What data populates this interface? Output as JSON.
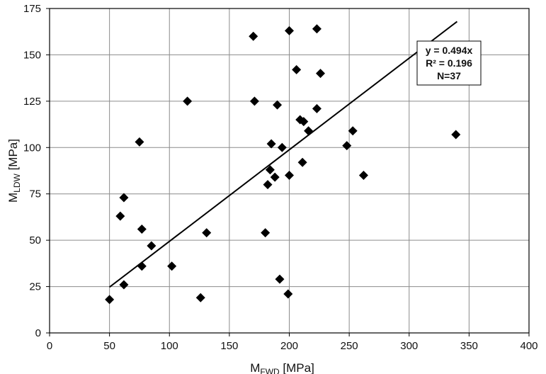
{
  "chart_data": {
    "type": "scatter",
    "title": "",
    "xlabel": {
      "main": "M",
      "sub": "FWD",
      "unit": " [MPa]"
    },
    "ylabel": {
      "main": "M",
      "sub": "LDW",
      "unit": " [MPa]"
    },
    "xlim": [
      0,
      400
    ],
    "ylim": [
      0,
      175
    ],
    "xticks": [
      0,
      50,
      100,
      150,
      200,
      250,
      300,
      350,
      400
    ],
    "yticks": [
      0,
      25,
      50,
      75,
      100,
      125,
      150,
      175
    ],
    "grid": true,
    "legend": "none",
    "colors": {
      "marker": "#000000",
      "grid": "#8c8c8c",
      "line": "#000000"
    },
    "points": [
      [
        50,
        18
      ],
      [
        59,
        63
      ],
      [
        62,
        73
      ],
      [
        62,
        26
      ],
      [
        75,
        103
      ],
      [
        77,
        56
      ],
      [
        77,
        36
      ],
      [
        85,
        47
      ],
      [
        102,
        36
      ],
      [
        115,
        125
      ],
      [
        126,
        19
      ],
      [
        131,
        54
      ],
      [
        170,
        160
      ],
      [
        171,
        125
      ],
      [
        180,
        54
      ],
      [
        182,
        80
      ],
      [
        184,
        88
      ],
      [
        185,
        102
      ],
      [
        188,
        84
      ],
      [
        190,
        123
      ],
      [
        192,
        29
      ],
      [
        194,
        100
      ],
      [
        199,
        21
      ],
      [
        200,
        85
      ],
      [
        200,
        163
      ],
      [
        206,
        142
      ],
      [
        209,
        115
      ],
      [
        211,
        92
      ],
      [
        212,
        114
      ],
      [
        216,
        109
      ],
      [
        223,
        121
      ],
      [
        223,
        164
      ],
      [
        226,
        140
      ],
      [
        248,
        101
      ],
      [
        253,
        109
      ],
      [
        262,
        85
      ],
      [
        339,
        107
      ]
    ],
    "trendline": {
      "slope": 0.494,
      "x_range": [
        50,
        340
      ]
    },
    "annotation": [
      "y = 0.494x",
      "R² = 0.196",
      "N=37"
    ]
  }
}
